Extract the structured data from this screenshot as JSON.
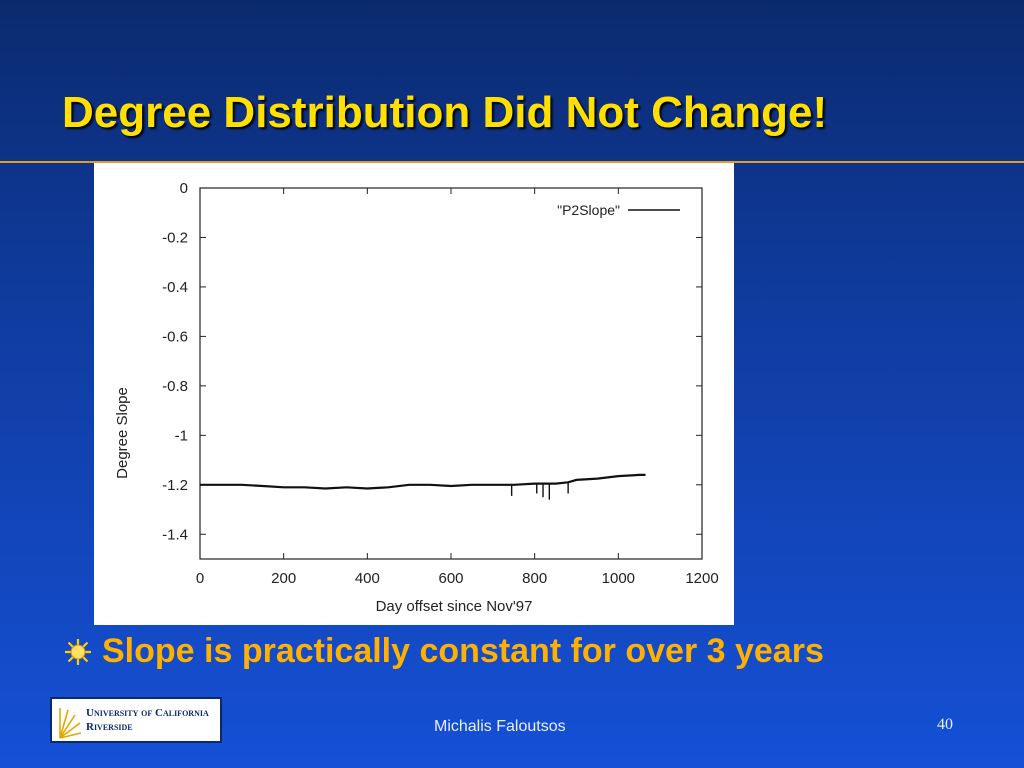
{
  "slide": {
    "title": "Degree Distribution Did Not Change!",
    "bullet": "Slope is practically constant for over 3 years",
    "footer_author": "Michalis Faloutsos",
    "page_number": "40",
    "logo_line1": "University of California",
    "logo_line2": "Riverside"
  },
  "colors": {
    "title": "#ffe000",
    "bullet_text": "#ffb000",
    "rule": "#e39b2a",
    "background": "#1550d6"
  },
  "chart_data": {
    "type": "line",
    "xlabel": "Day offset since Nov'97",
    "ylabel": "Degree Slope",
    "xlim": [
      0,
      1200
    ],
    "ylim": [
      -1.5,
      0
    ],
    "xticks": [
      "0",
      "200",
      "400",
      "600",
      "800",
      "1000",
      "1200"
    ],
    "yticks": [
      "0",
      "-0.2",
      "-0.4",
      "-0.6",
      "-0.8",
      "-1",
      "-1.2",
      "-1.4"
    ],
    "xtick_values": [
      0,
      200,
      400,
      600,
      800,
      1000,
      1200
    ],
    "ytick_values": [
      0,
      -0.2,
      -0.4,
      -0.6,
      -0.8,
      -1,
      -1.2,
      -1.4
    ],
    "legend_position": "top-right",
    "grid": false,
    "series": [
      {
        "name": "\"P2Slope\"",
        "x": [
          0,
          50,
          100,
          150,
          200,
          250,
          300,
          350,
          400,
          450,
          500,
          550,
          600,
          650,
          700,
          750,
          800,
          850,
          880,
          900,
          950,
          1000,
          1050,
          1065
        ],
        "y": [
          -1.2,
          -1.2,
          -1.2,
          -1.205,
          -1.21,
          -1.21,
          -1.215,
          -1.21,
          -1.215,
          -1.21,
          -1.2,
          -1.2,
          -1.205,
          -1.2,
          -1.2,
          -1.2,
          -1.195,
          -1.195,
          -1.19,
          -1.18,
          -1.175,
          -1.165,
          -1.16,
          -1.16
        ]
      }
    ],
    "spikes": [
      {
        "x": 745,
        "y": -1.245
      },
      {
        "x": 820,
        "y": -1.25
      },
      {
        "x": 835,
        "y": -1.26
      },
      {
        "x": 880,
        "y": -1.235
      },
      {
        "x": 805,
        "y": -1.235
      }
    ]
  },
  "icons": {
    "bullet": "sun-bullet-icon",
    "logo": "ucr-logo"
  }
}
